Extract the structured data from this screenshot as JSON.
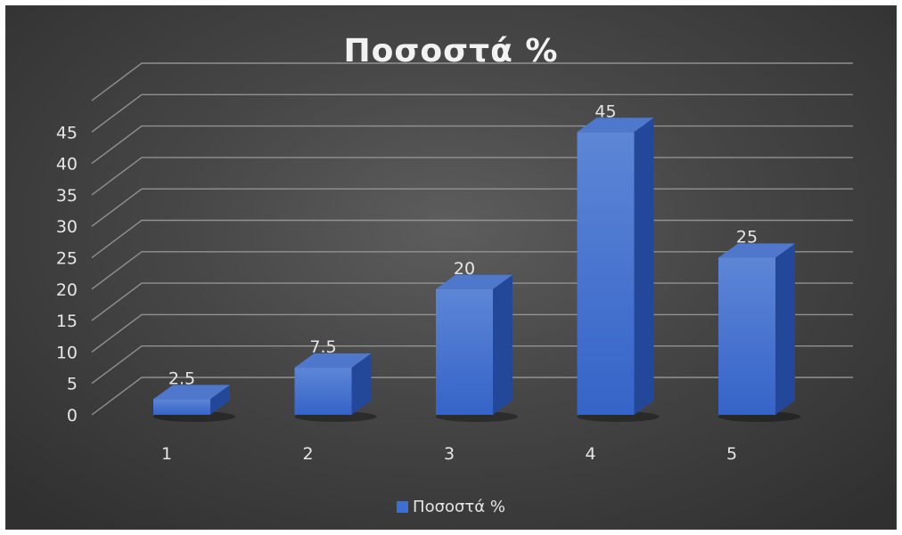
{
  "chart_data": {
    "type": "bar",
    "title": "Ποσοστά %",
    "categories": [
      "1",
      "2",
      "3",
      "4",
      "5"
    ],
    "series": [
      {
        "name": "Ποσοστά %",
        "values": [
          2.5,
          7.5,
          20,
          45,
          25
        ],
        "color": "#3c6fd2"
      }
    ],
    "data_labels": [
      "2.5",
      "7.5",
      "20",
      "45",
      "25"
    ],
    "y_ticks": [
      "0",
      "5",
      "10",
      "15",
      "20",
      "25",
      "30",
      "35",
      "40",
      "45"
    ],
    "ylim": [
      0,
      50
    ],
    "grid": true,
    "style": "3d-column",
    "legend_position": "bottom",
    "background": "#474747",
    "text_color": "#e6e6e6"
  }
}
